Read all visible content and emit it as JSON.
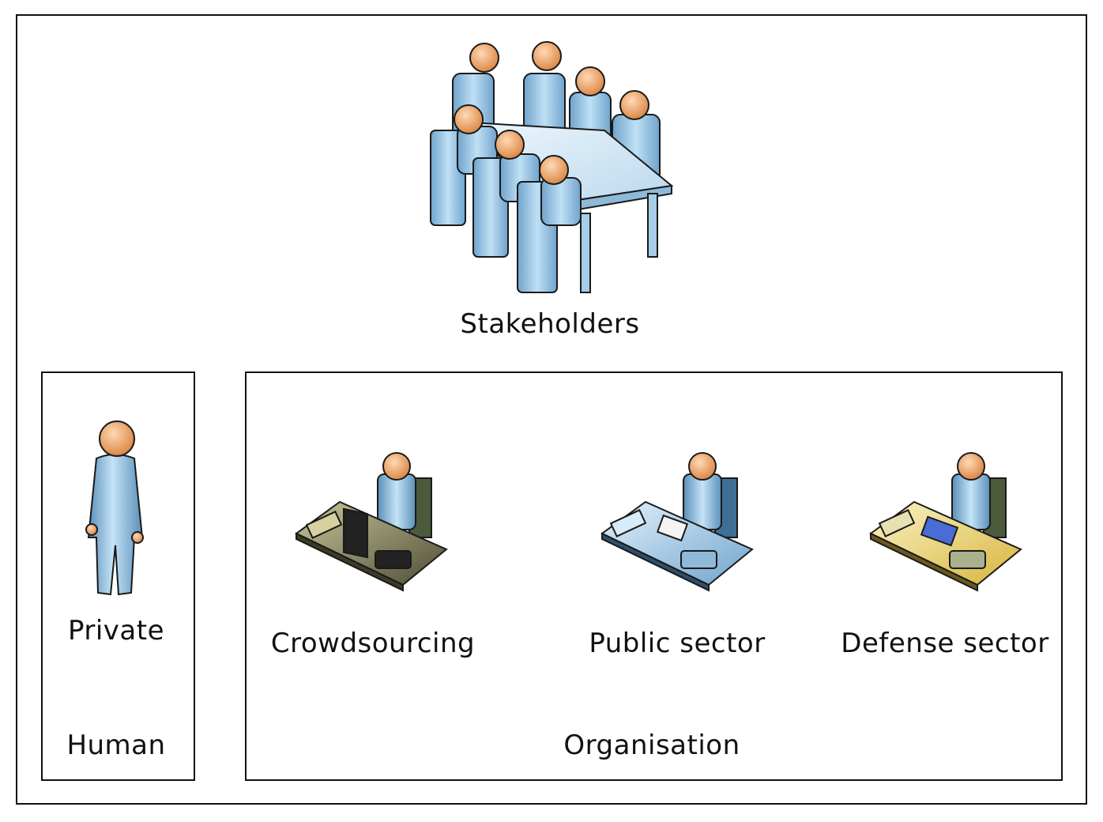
{
  "diagram": {
    "top": {
      "label": "Stakeholders",
      "icon": "meeting-table-icon"
    },
    "human_group": {
      "title": "Human",
      "members": [
        {
          "label": "Private",
          "icon": "standing-person-icon"
        }
      ]
    },
    "organisation_group": {
      "title": "Organisation",
      "members": [
        {
          "label": "Crowdsourcing",
          "icon": "computer-desk-worker-icon"
        },
        {
          "label": "Public sector",
          "icon": "blue-desk-worker-icon"
        },
        {
          "label": "Defense sector",
          "icon": "yellow-desk-worker-icon"
        }
      ]
    },
    "colors": {
      "skin": "#f2a46a",
      "body_blue": "#9cc9e6",
      "body_blue_dark": "#5a8fb8",
      "desk_dark": "#5b5a40",
      "desk_blue": "#a9d0ec",
      "desk_yellow": "#e7d37a",
      "border": "#111111"
    }
  }
}
